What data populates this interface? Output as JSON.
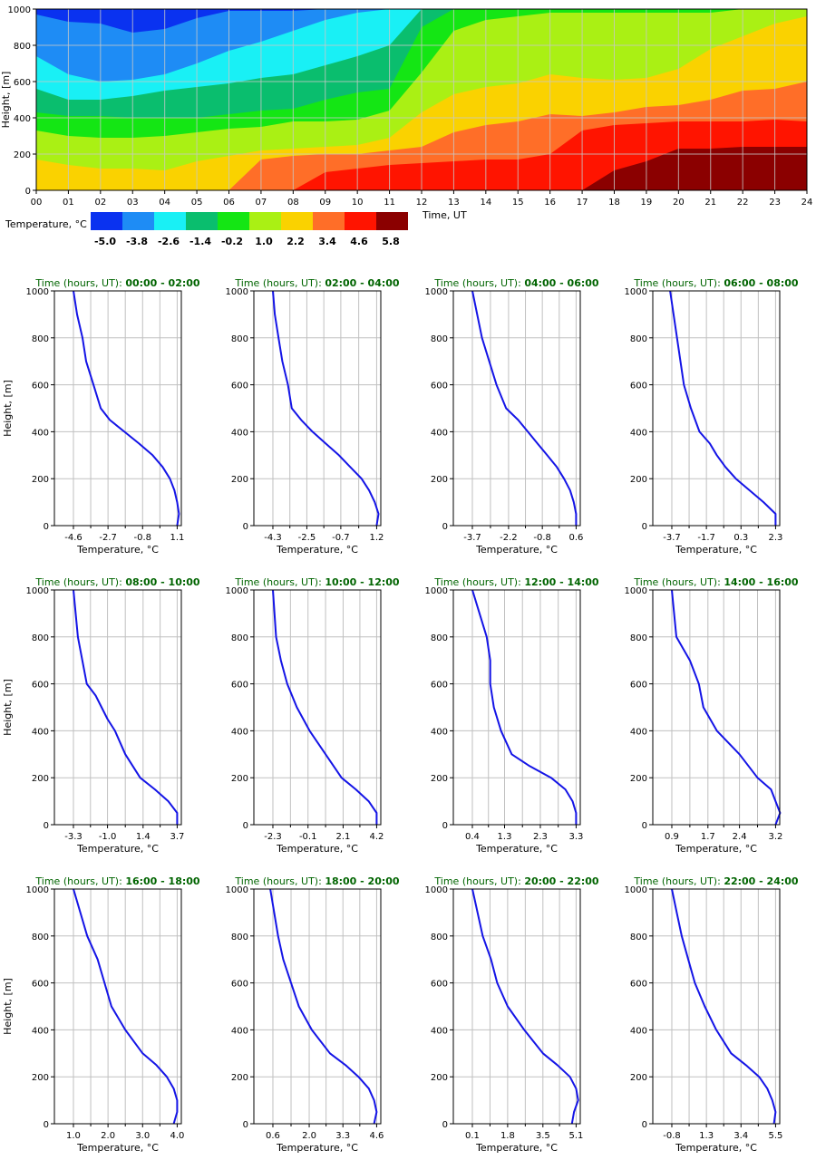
{
  "heatmap": {
    "ylabel": "Height, [m]",
    "xlabel": "Time, UT",
    "x_ticks": [
      "00",
      "01",
      "02",
      "03",
      "04",
      "05",
      "06",
      "07",
      "08",
      "09",
      "10",
      "11",
      "12",
      "13",
      "14",
      "15",
      "16",
      "17",
      "18",
      "19",
      "20",
      "21",
      "22",
      "23",
      "24"
    ],
    "y_ticks": [
      "0",
      "200",
      "400",
      "600",
      "800",
      "1000"
    ],
    "ylim": [
      0,
      1000
    ],
    "xlim": [
      0,
      24
    ],
    "colorbar": {
      "label": "Temperature, °C",
      "ticks": [
        "-5.0",
        "-3.8",
        "-2.6",
        "-1.4",
        "-0.2",
        "1.0",
        "2.2",
        "3.4",
        "4.6",
        "5.8"
      ],
      "colors": [
        "#0a32f0",
        "#1e8cf5",
        "#19f0f5",
        "#0abe6e",
        "#14e614",
        "#aaf014",
        "#fad200",
        "#ff6e28",
        "#ff1400",
        "#8b0000"
      ]
    }
  },
  "chart_data": [
    {
      "type": "heatmap",
      "title": "",
      "xlabel": "Time, UT",
      "ylabel": "Height, [m]",
      "xlim": [
        0,
        24
      ],
      "ylim": [
        0,
        1000
      ],
      "boundaries": {
        "x": [
          0,
          1,
          2,
          3,
          4,
          5,
          6,
          7,
          8,
          9,
          10,
          11,
          12,
          13,
          14,
          15,
          16,
          17,
          18,
          19,
          20,
          21,
          22,
          23,
          24
        ],
        "t_-3.8": [
          970,
          930,
          920,
          870,
          890,
          950,
          990,
          990,
          990,
          1000,
          1000,
          1000,
          1000,
          1000,
          1000,
          1000,
          1000,
          1000,
          1000,
          1000,
          1000,
          1000,
          1000,
          1000,
          1000
        ],
        "t_-2.6": [
          740,
          640,
          600,
          610,
          640,
          700,
          770,
          820,
          880,
          940,
          980,
          1000,
          1000,
          1000,
          1000,
          1000,
          1000,
          1000,
          1000,
          1000,
          1000,
          1000,
          1000,
          1000,
          1000
        ],
        "t_-1.4": [
          560,
          500,
          500,
          520,
          550,
          570,
          590,
          620,
          640,
          690,
          740,
          800,
          1000,
          1000,
          1000,
          1000,
          1000,
          1000,
          1000,
          1000,
          1000,
          1000,
          1000,
          1000,
          1000
        ],
        "t_-0.2": [
          430,
          410,
          410,
          400,
          400,
          400,
          420,
          440,
          450,
          500,
          540,
          560,
          900,
          1000,
          1000,
          1000,
          1000,
          1000,
          1000,
          1000,
          1000,
          1000,
          1000,
          1000,
          1000
        ],
        "t_1.0": [
          330,
          300,
          290,
          290,
          300,
          320,
          340,
          350,
          380,
          380,
          390,
          440,
          650,
          880,
          940,
          960,
          980,
          980,
          980,
          980,
          980,
          980,
          1000,
          1000,
          1000
        ],
        "t_2.2": [
          170,
          140,
          120,
          120,
          110,
          160,
          190,
          220,
          230,
          240,
          250,
          290,
          430,
          530,
          570,
          590,
          640,
          620,
          610,
          620,
          670,
          780,
          850,
          920,
          960
        ],
        "t_3.4": [
          0,
          0,
          0,
          0,
          0,
          0,
          0,
          170,
          190,
          200,
          200,
          220,
          240,
          320,
          360,
          380,
          420,
          410,
          430,
          460,
          470,
          500,
          550,
          560,
          600
        ],
        "t_4.6": [
          0,
          0,
          0,
          0,
          0,
          0,
          0,
          0,
          0,
          100,
          120,
          140,
          150,
          160,
          170,
          170,
          200,
          330,
          360,
          370,
          380,
          380,
          380,
          390,
          380
        ],
        "t_5.8": [
          0,
          0,
          0,
          0,
          0,
          0,
          0,
          0,
          0,
          0,
          0,
          0,
          0,
          0,
          0,
          0,
          0,
          0,
          110,
          160,
          230,
          230,
          240,
          240,
          240
        ]
      }
    },
    {
      "type": "line",
      "title": "Time (hours, UT): 00:00 - 02:00",
      "xlabel": "Temperature, °C",
      "ylabel": "Height, [m]",
      "ylim": [
        0,
        1000
      ],
      "x_ticks": [
        "-4.6",
        "-2.7",
        "-0.8",
        "1.1"
      ],
      "series": [
        {
          "x": [
            1.1,
            1.2,
            1.1,
            0.95,
            0.7,
            0.3,
            -0.25,
            -1.0,
            -1.8,
            -2.6,
            -3.1,
            -3.5,
            -3.9,
            -4.1,
            -4.4,
            -4.6
          ],
          "y": [
            0,
            50,
            100,
            150,
            200,
            250,
            300,
            350,
            400,
            450,
            500,
            600,
            700,
            800,
            900,
            1000
          ]
        }
      ]
    },
    {
      "type": "line",
      "title": "Time (hours, UT): 02:00 - 04:00",
      "xlabel": "Temperature, °C",
      "ylabel": "Height, [m]",
      "ylim": [
        0,
        1000
      ],
      "x_ticks": [
        "-4.3",
        "-2.5",
        "-0.7",
        "1.2"
      ],
      "series": [
        {
          "x": [
            1.2,
            1.3,
            1.1,
            0.8,
            0.4,
            -0.2,
            -0.8,
            -1.5,
            -2.2,
            -2.8,
            -3.3,
            -3.5,
            -3.8,
            -4.0,
            -4.2,
            -4.3
          ],
          "y": [
            0,
            50,
            100,
            150,
            200,
            250,
            300,
            350,
            400,
            450,
            500,
            600,
            700,
            800,
            900,
            1000
          ]
        }
      ]
    },
    {
      "type": "line",
      "title": "Time (hours, UT): 04:00 - 06:00",
      "xlabel": "Temperature, °C",
      "ylabel": "Height, [m]",
      "ylim": [
        0,
        1000
      ],
      "x_ticks": [
        "-3.7",
        "-2.2",
        "-0.8",
        "0.6"
      ],
      "series": [
        {
          "x": [
            0.6,
            0.6,
            0.5,
            0.35,
            0.1,
            -0.2,
            -0.6,
            -1.0,
            -1.4,
            -1.8,
            -2.3,
            -2.7,
            -3.0,
            -3.3,
            -3.5,
            -3.7
          ],
          "y": [
            0,
            50,
            100,
            150,
            200,
            250,
            300,
            350,
            400,
            450,
            500,
            600,
            700,
            800,
            900,
            1000
          ]
        }
      ]
    },
    {
      "type": "line",
      "title": "Time (hours, UT): 06:00 - 08:00",
      "xlabel": "Temperature, °C",
      "ylabel": "Height, [m]",
      "ylim": [
        0,
        1000
      ],
      "x_ticks": [
        "-3.7",
        "-1.7",
        "0.3",
        "2.3"
      ],
      "series": [
        {
          "x": [
            2.3,
            2.3,
            1.6,
            0.8,
            0.0,
            -0.6,
            -1.1,
            -1.5,
            -2.1,
            -2.6,
            -3.0,
            -3.2,
            -3.4,
            -3.6,
            -3.8
          ],
          "y": [
            0,
            50,
            100,
            150,
            200,
            250,
            300,
            350,
            400,
            500,
            600,
            700,
            800,
            900,
            1000
          ]
        }
      ]
    },
    {
      "type": "line",
      "title": "Time (hours, UT): 08:00 - 10:00",
      "xlabel": "Temperature, °C",
      "ylabel": "Height, [m]",
      "ylim": [
        0,
        1000
      ],
      "x_ticks": [
        "-3.3",
        "-1.0",
        "1.4",
        "3.7"
      ],
      "series": [
        {
          "x": [
            3.7,
            3.7,
            3.1,
            2.2,
            1.2,
            0.2,
            -0.5,
            -1.0,
            -1.8,
            -2.4,
            -2.7,
            -3.0,
            -3.3
          ],
          "y": [
            0,
            50,
            100,
            150,
            200,
            300,
            400,
            450,
            550,
            600,
            700,
            800,
            1000
          ]
        }
      ]
    },
    {
      "type": "line",
      "title": "Time (hours, UT): 10:00 - 12:00",
      "xlabel": "Temperature, °C",
      "ylabel": "Height, [m]",
      "ylim": [
        0,
        1000
      ],
      "x_ticks": [
        "-2.3",
        "-0.1",
        "2.1",
        "4.2"
      ],
      "series": [
        {
          "x": [
            4.2,
            4.2,
            3.7,
            2.9,
            2.0,
            1.0,
            0.0,
            -0.8,
            -1.4,
            -1.8,
            -2.1,
            -2.3
          ],
          "y": [
            0,
            50,
            100,
            150,
            200,
            300,
            400,
            500,
            600,
            700,
            800,
            1000
          ]
        }
      ]
    },
    {
      "type": "line",
      "title": "Time (hours, UT): 12:00 - 14:00",
      "xlabel": "Temperature, °C",
      "ylabel": "Height, [m]",
      "ylim": [
        0,
        1000
      ],
      "x_ticks": [
        "0.4",
        "1.3",
        "2.3",
        "3.3"
      ],
      "series": [
        {
          "x": [
            3.3,
            3.3,
            3.2,
            3.0,
            2.6,
            2.0,
            1.5,
            1.2,
            1.0,
            0.9,
            0.9,
            0.8,
            0.6,
            0.4
          ],
          "y": [
            0,
            50,
            100,
            150,
            200,
            250,
            300,
            400,
            500,
            600,
            700,
            800,
            900,
            1000
          ]
        }
      ]
    },
    {
      "type": "line",
      "title": "Time (hours, UT): 14:00 - 16:00",
      "xlabel": "Temperature, °C",
      "ylabel": "Height, [m]",
      "ylim": [
        0,
        1000
      ],
      "x_ticks": [
        "0.9",
        "1.7",
        "2.4",
        "3.2"
      ],
      "series": [
        {
          "x": [
            3.2,
            3.3,
            3.2,
            3.1,
            2.8,
            2.4,
            1.9,
            1.6,
            1.5,
            1.3,
            1.0,
            0.9
          ],
          "y": [
            0,
            50,
            100,
            150,
            200,
            300,
            400,
            500,
            600,
            700,
            800,
            1000
          ]
        }
      ]
    },
    {
      "type": "line",
      "title": "Time (hours, UT): 16:00 - 18:00",
      "xlabel": "Temperature, °C",
      "ylabel": "Height, [m]",
      "ylim": [
        0,
        1000
      ],
      "x_ticks": [
        "1.0",
        "2.0",
        "3.0",
        "4.0"
      ],
      "series": [
        {
          "x": [
            3.9,
            4.0,
            4.0,
            3.9,
            3.7,
            3.4,
            3.0,
            2.5,
            2.1,
            1.9,
            1.7,
            1.4,
            1.0
          ],
          "y": [
            0,
            50,
            100,
            150,
            200,
            250,
            300,
            400,
            500,
            600,
            700,
            800,
            1000
          ]
        }
      ]
    },
    {
      "type": "line",
      "title": "Time (hours, UT): 18:00 - 20:00",
      "xlabel": "Temperature, °C",
      "ylabel": "Height, [m]",
      "ylim": [
        0,
        1000
      ],
      "x_ticks": [
        "0.6",
        "2.0",
        "3.3",
        "4.6"
      ],
      "series": [
        {
          "x": [
            4.5,
            4.6,
            4.5,
            4.3,
            3.9,
            3.4,
            2.8,
            2.1,
            1.6,
            1.3,
            1.0,
            0.8,
            0.5
          ],
          "y": [
            0,
            50,
            100,
            150,
            200,
            250,
            300,
            400,
            500,
            600,
            700,
            800,
            1000
          ]
        }
      ]
    },
    {
      "type": "line",
      "title": "Time (hours, UT): 20:00 - 22:00",
      "xlabel": "Temperature, °C",
      "ylabel": "Height, [m]",
      "ylim": [
        0,
        1000
      ],
      "x_ticks": [
        "0.1",
        "1.8",
        "3.5",
        "5.1"
      ],
      "series": [
        {
          "x": [
            4.9,
            5.0,
            5.2,
            5.1,
            4.8,
            4.2,
            3.5,
            2.6,
            1.8,
            1.3,
            1.0,
            0.6,
            0.1
          ],
          "y": [
            0,
            50,
            100,
            150,
            200,
            250,
            300,
            400,
            500,
            600,
            700,
            800,
            1000
          ]
        }
      ]
    },
    {
      "type": "line",
      "title": "Time (hours, UT): 22:00 - 24:00",
      "xlabel": "Temperature, °C",
      "ylabel": "Height, [m]",
      "ylim": [
        0,
        1000
      ],
      "x_ticks": [
        "-0.8",
        "1.3",
        "3.4",
        "5.5"
      ],
      "series": [
        {
          "x": [
            5.4,
            5.5,
            5.3,
            5.0,
            4.5,
            3.7,
            2.8,
            1.9,
            1.2,
            0.6,
            0.2,
            -0.2,
            -0.5,
            -0.8
          ],
          "y": [
            0,
            50,
            100,
            150,
            200,
            250,
            300,
            400,
            500,
            600,
            700,
            800,
            900,
            1000
          ]
        }
      ]
    }
  ]
}
